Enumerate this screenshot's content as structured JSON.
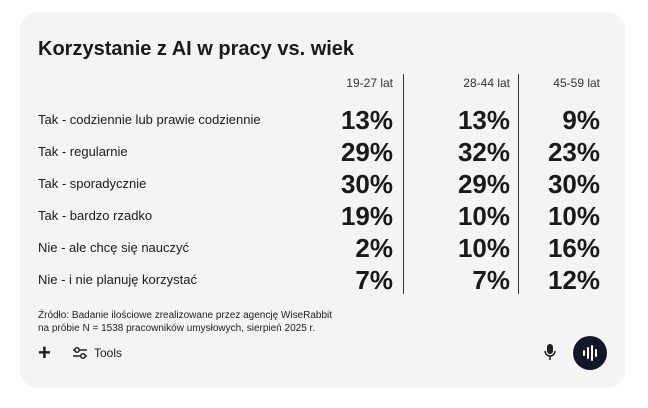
{
  "table": {
    "title": "Korzystanie z AI w pracy vs. wiek",
    "columns": [
      "19-27 lat",
      "28-44 lat",
      "45-59 lat"
    ],
    "rows": [
      {
        "label": "Tak - codziennie lub prawie codziennie",
        "cells": [
          "13%",
          "13%",
          "9%"
        ]
      },
      {
        "label": "Tak - regularnie",
        "cells": [
          "29%",
          "32%",
          "23%"
        ]
      },
      {
        "label": "Tak - sporadycznie",
        "cells": [
          "30%",
          "29%",
          "30%"
        ]
      },
      {
        "label": "Tak - bardzo rzadko",
        "cells": [
          "19%",
          "10%",
          "10%"
        ]
      },
      {
        "label": "Nie - ale chcę się nauczyć",
        "cells": [
          "2%",
          "10%",
          "16%"
        ]
      },
      {
        "label": "Nie - i nie planuję korzystać",
        "cells": [
          "7%",
          "7%",
          "12%"
        ]
      }
    ]
  },
  "source": [
    "Źródło: Badanie ilościowe zrealizowane przez agencję WiseRabbit",
    "na próbie N = 1538 pracowników umysłowych, sierpień 2025 r."
  ],
  "toolbar": {
    "tools": "Tools"
  }
}
